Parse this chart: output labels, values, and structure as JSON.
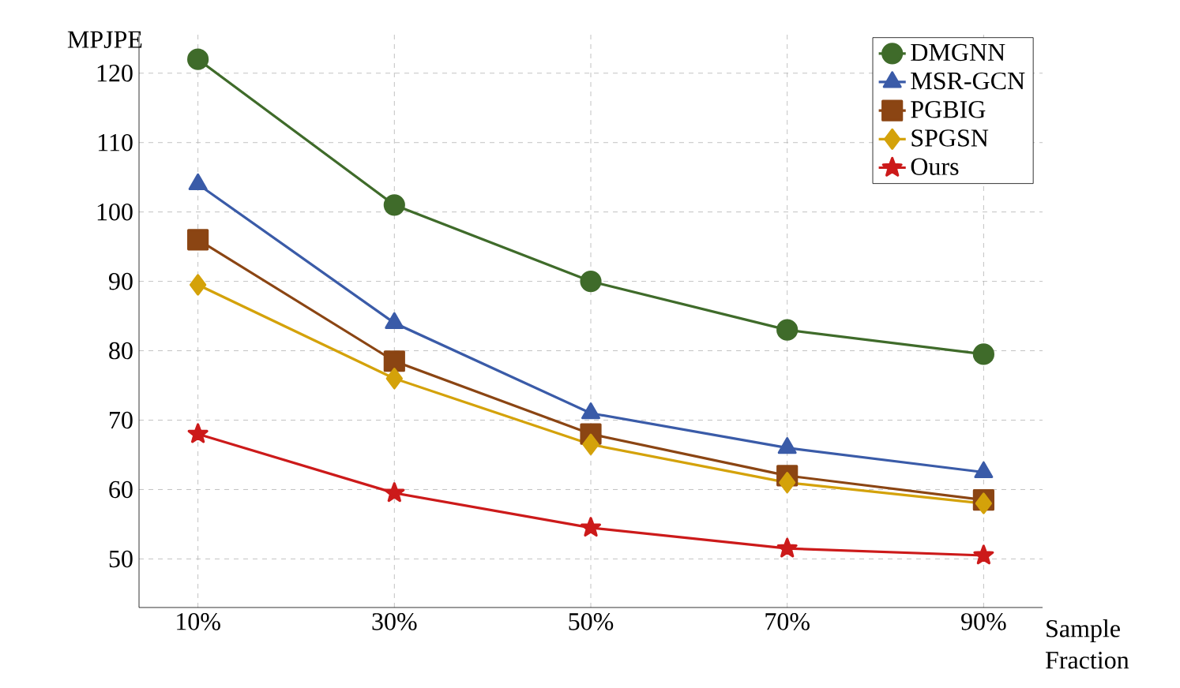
{
  "chart_data": {
    "type": "line",
    "ylabel": "MPJPE",
    "xlabel": "Sample Fraction",
    "categories": [
      "10%",
      "30%",
      "50%",
      "70%",
      "90%"
    ],
    "series": [
      {
        "name": "DMGNN",
        "color": "#3f6b2a",
        "marker": "circle",
        "values": [
          122,
          101,
          90,
          83,
          79.5
        ]
      },
      {
        "name": "MSR-GCN",
        "color": "#3a5ba8",
        "marker": "triangle",
        "values": [
          104,
          84,
          71,
          66,
          62.5
        ]
      },
      {
        "name": "PGBIG",
        "color": "#8b4513",
        "marker": "square",
        "values": [
          96,
          78.5,
          68,
          62,
          58.5
        ]
      },
      {
        "name": "SPGSN",
        "color": "#d4a20a",
        "marker": "diamond",
        "values": [
          89.5,
          76,
          66.5,
          61,
          58
        ]
      },
      {
        "name": "Ours",
        "color": "#cc1a1a",
        "marker": "star",
        "values": [
          68,
          59.5,
          54.5,
          51.5,
          50.5
        ]
      }
    ],
    "ylim": [
      43,
      126
    ],
    "yticks": [
      50,
      60,
      70,
      80,
      90,
      100,
      110,
      120
    ],
    "grid": true,
    "legend": "top right",
    "line_style": "solid"
  }
}
